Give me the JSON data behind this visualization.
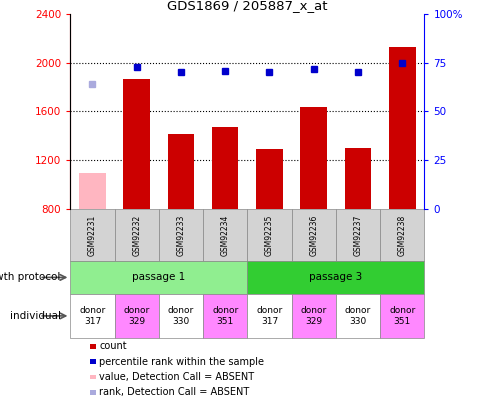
{
  "title": "GDS1869 / 205887_x_at",
  "samples": [
    "GSM92231",
    "GSM92232",
    "GSM92233",
    "GSM92234",
    "GSM92235",
    "GSM92236",
    "GSM92237",
    "GSM92238"
  ],
  "counts": [
    1090,
    1870,
    1415,
    1470,
    1290,
    1640,
    1295,
    2130
  ],
  "counts_absent": [
    true,
    false,
    false,
    false,
    false,
    false,
    false,
    false
  ],
  "percentile_ranks": [
    64,
    73,
    70,
    71,
    70,
    72,
    70,
    75
  ],
  "percentile_absent": [
    true,
    false,
    false,
    false,
    false,
    false,
    false,
    false
  ],
  "ylim_left": [
    800,
    2400
  ],
  "ylim_right": [
    0,
    100
  ],
  "yticks_left": [
    800,
    1200,
    1600,
    2000,
    2400
  ],
  "yticks_right": [
    0,
    25,
    50,
    75,
    100
  ],
  "passage1_color": "#90EE90",
  "passage3_color": "#32CD32",
  "individual_colors": [
    "#FFFFFF",
    "#FF88FF",
    "#FFFFFF",
    "#FF88FF",
    "#FFFFFF",
    "#FF88FF",
    "#FFFFFF",
    "#FF88FF"
  ],
  "individual_labels": [
    "donor\n317",
    "donor\n329",
    "donor\n330",
    "donor\n351",
    "donor\n317",
    "donor\n329",
    "donor\n330",
    "donor\n351"
  ],
  "bar_color_present": "#CC0000",
  "bar_color_absent": "#FFB6C1",
  "dot_color_present": "#0000CC",
  "dot_color_absent": "#AAAADD",
  "label_growth": "growth protocol",
  "label_individual": "individual",
  "legend_items": [
    {
      "label": "count",
      "color": "#CC0000"
    },
    {
      "label": "percentile rank within the sample",
      "color": "#0000CC"
    },
    {
      "label": "value, Detection Call = ABSENT",
      "color": "#FFB6C1"
    },
    {
      "label": "rank, Detection Call = ABSENT",
      "color": "#AAAADD"
    }
  ]
}
